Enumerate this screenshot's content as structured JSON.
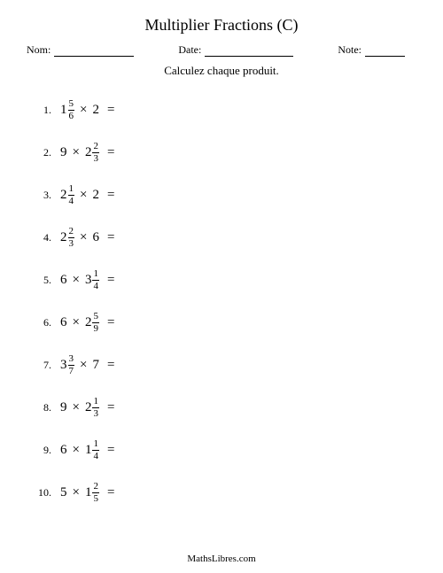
{
  "title": "Multiplier Fractions (C)",
  "header": {
    "name_label": "Nom:",
    "date_label": "Date:",
    "note_label": "Note:"
  },
  "instruction": "Calculez chaque produit.",
  "footer": "MathsLibres.com",
  "symbols": {
    "times": "×",
    "equals": "="
  },
  "problems": [
    {
      "num": "1.",
      "left": {
        "type": "mixed",
        "whole": "1",
        "n": "5",
        "d": "6"
      },
      "right": {
        "type": "int",
        "value": "2"
      }
    },
    {
      "num": "2.",
      "left": {
        "type": "int",
        "value": "9"
      },
      "right": {
        "type": "mixed",
        "whole": "2",
        "n": "2",
        "d": "3"
      }
    },
    {
      "num": "3.",
      "left": {
        "type": "mixed",
        "whole": "2",
        "n": "1",
        "d": "4"
      },
      "right": {
        "type": "int",
        "value": "2"
      }
    },
    {
      "num": "4.",
      "left": {
        "type": "mixed",
        "whole": "2",
        "n": "2",
        "d": "3"
      },
      "right": {
        "type": "int",
        "value": "6"
      }
    },
    {
      "num": "5.",
      "left": {
        "type": "int",
        "value": "6"
      },
      "right": {
        "type": "mixed",
        "whole": "3",
        "n": "1",
        "d": "4"
      }
    },
    {
      "num": "6.",
      "left": {
        "type": "int",
        "value": "6"
      },
      "right": {
        "type": "mixed",
        "whole": "2",
        "n": "5",
        "d": "9"
      }
    },
    {
      "num": "7.",
      "left": {
        "type": "mixed",
        "whole": "3",
        "n": "3",
        "d": "7"
      },
      "right": {
        "type": "int",
        "value": "7"
      }
    },
    {
      "num": "8.",
      "left": {
        "type": "int",
        "value": "9"
      },
      "right": {
        "type": "mixed",
        "whole": "2",
        "n": "1",
        "d": "3"
      }
    },
    {
      "num": "9.",
      "left": {
        "type": "int",
        "value": "6"
      },
      "right": {
        "type": "mixed",
        "whole": "1",
        "n": "1",
        "d": "4"
      }
    },
    {
      "num": "10.",
      "left": {
        "type": "int",
        "value": "5"
      },
      "right": {
        "type": "mixed",
        "whole": "1",
        "n": "2",
        "d": "5"
      }
    }
  ],
  "style": {
    "page_bg": "#ffffff",
    "text_color": "#000000",
    "underline_widths": {
      "name": 90,
      "date": 100,
      "note": 45
    }
  }
}
